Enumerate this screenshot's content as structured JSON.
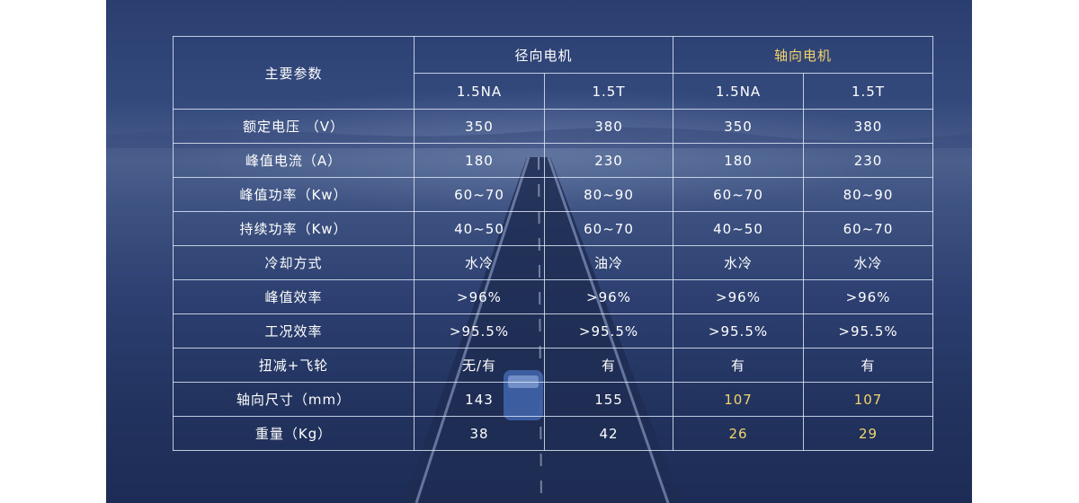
{
  "table": {
    "param_header": "主要参数",
    "groups": [
      {
        "label": "径向电机",
        "highlight": false
      },
      {
        "label": "轴向电机",
        "highlight": true
      }
    ],
    "models": [
      "1.5NA",
      "1.5T",
      "1.5NA",
      "1.5T"
    ],
    "rows": [
      {
        "param": "额定电压 （V）",
        "values": [
          "350",
          "380",
          "350",
          "380"
        ]
      },
      {
        "param": "峰值电流（A）",
        "values": [
          "180",
          "230",
          "180",
          "230"
        ]
      },
      {
        "param": "峰值功率（Kw）",
        "values": [
          "60~70",
          "80~90",
          "60~70",
          "80~90"
        ]
      },
      {
        "param": "持续功率（Kw）",
        "values": [
          "40~50",
          "60~70",
          "40~50",
          "60~70"
        ]
      },
      {
        "param": "冷却方式",
        "values": [
          "水冷",
          "油冷",
          "水冷",
          "水冷"
        ]
      },
      {
        "param": "峰值效率",
        "values": [
          ">96%",
          ">96%",
          ">96%",
          ">96%"
        ]
      },
      {
        "param": "工况效率",
        "values": [
          ">95.5%",
          ">95.5%",
          ">95.5%",
          ">95.5%"
        ]
      },
      {
        "param": "扭减+飞轮",
        "values": [
          "无/有",
          "有",
          "有",
          "有"
        ]
      },
      {
        "param": "轴向尺寸（mm）",
        "values": [
          "143",
          "155",
          "107",
          "107"
        ],
        "highlight_cols": [
          2,
          3
        ]
      },
      {
        "param": "重量（Kg）",
        "values": [
          "38",
          "42",
          "26",
          "29"
        ],
        "highlight_cols": [
          2,
          3
        ]
      }
    ]
  },
  "colors": {
    "highlight": "#f3d46b",
    "text": "#ffffff",
    "background": "#2b3e70"
  }
}
